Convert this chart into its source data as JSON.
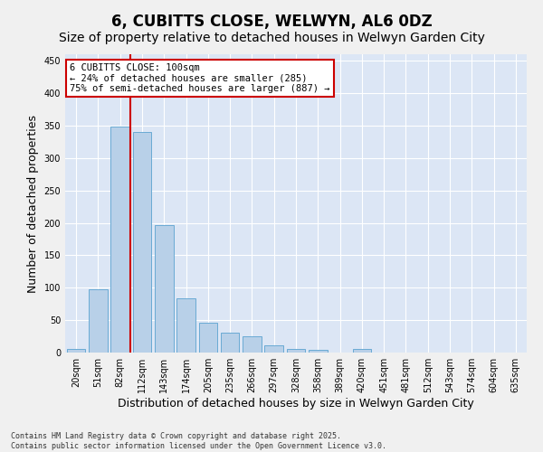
{
  "title": "6, CUBITTS CLOSE, WELWYN, AL6 0DZ",
  "subtitle": "Size of property relative to detached houses in Welwyn Garden City",
  "xlabel": "Distribution of detached houses by size in Welwyn Garden City",
  "ylabel": "Number of detached properties",
  "categories": [
    "20sqm",
    "51sqm",
    "82sqm",
    "112sqm",
    "143sqm",
    "174sqm",
    "205sqm",
    "235sqm",
    "266sqm",
    "297sqm",
    "328sqm",
    "358sqm",
    "389sqm",
    "420sqm",
    "451sqm",
    "481sqm",
    "512sqm",
    "543sqm",
    "574sqm",
    "604sqm",
    "635sqm"
  ],
  "values": [
    5,
    98,
    348,
    340,
    197,
    84,
    46,
    30,
    25,
    11,
    6,
    4,
    0,
    5,
    0,
    0,
    0,
    0,
    0,
    0,
    0
  ],
  "bar_color": "#b8d0e8",
  "bar_edge_color": "#6aaad4",
  "vline_color": "#cc0000",
  "vline_x": 2.45,
  "annotation_text": "6 CUBITTS CLOSE: 100sqm\n← 24% of detached houses are smaller (285)\n75% of semi-detached houses are larger (887) →",
  "annotation_box_edgecolor": "#cc0000",
  "ylim": [
    0,
    460
  ],
  "yticks": [
    0,
    50,
    100,
    150,
    200,
    250,
    300,
    350,
    400,
    450
  ],
  "plot_bg_color": "#dce6f5",
  "fig_bg_color": "#f0f0f0",
  "grid_color": "#ffffff",
  "footer_text": "Contains HM Land Registry data © Crown copyright and database right 2025.\nContains public sector information licensed under the Open Government Licence v3.0.",
  "title_fontsize": 12,
  "subtitle_fontsize": 10,
  "xlabel_fontsize": 9,
  "ylabel_fontsize": 9,
  "tick_fontsize": 7,
  "annotation_fontsize": 7.5,
  "footer_fontsize": 6
}
